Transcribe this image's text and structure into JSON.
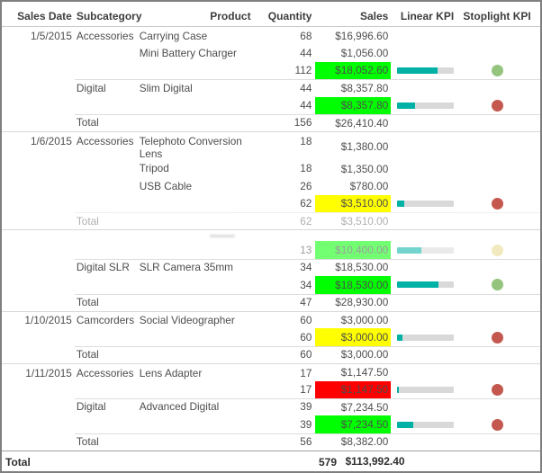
{
  "header": {
    "columns": [
      "Sales Date",
      "Subcategory",
      "Product",
      "Quantity",
      "Sales",
      "Linear KPI",
      "Stoplight KPI"
    ]
  },
  "colors": {
    "kpi_bar_fill": "#00b2a6",
    "kpi_bar_track": "#d9d9d9",
    "green_cell": "#00ff00",
    "yellow_cell": "#ffff00",
    "red_cell": "#ff0000",
    "stoplight_green": "#94c47e",
    "stoplight_red": "#c4584f",
    "stoplight_yellow": "#e8d889"
  },
  "rows": [
    {
      "type": "product",
      "date": "1/5/2015",
      "subcat": "Accessories",
      "product": "Carrying Case",
      "qty": "68",
      "sales": "$16,996.60"
    },
    {
      "type": "product",
      "product": "Mini Battery Charger",
      "qty": "44",
      "sales": "$1,056.00"
    },
    {
      "type": "kpi",
      "qty": "112",
      "sales": "$18,052.60",
      "sales_bg": "green",
      "bar": 0.71,
      "light": "green"
    },
    {
      "type": "product",
      "subcat": "Digital",
      "product": "Slim Digital",
      "qty": "44",
      "sales": "$8,357.80",
      "sep": "indent"
    },
    {
      "type": "kpi",
      "qty": "44",
      "sales": "$8,357.80",
      "sales_bg": "green",
      "bar": 0.31,
      "light": "red"
    },
    {
      "type": "total",
      "subcat": "Total",
      "qty": "156",
      "sales": "$26,410.40",
      "sep": "indent"
    },
    {
      "type": "product",
      "date": "1/6/2015",
      "subcat": "Accessories",
      "product": "Telephoto Conversion Lens",
      "qty": "18",
      "sales": "$1,380.00",
      "sep": "full"
    },
    {
      "type": "product",
      "product": "Tripod",
      "qty": "18",
      "sales": "$1,350.00"
    },
    {
      "type": "product",
      "product": "USB Cable",
      "qty": "26",
      "sales": "$780.00"
    },
    {
      "type": "kpi",
      "qty": "62",
      "sales": "$3,510.00",
      "sales_bg": "yellow",
      "bar": 0.13,
      "light": "red"
    },
    {
      "type": "total",
      "subcat": "Total",
      "qty": "62",
      "sales": "$3,510.00",
      "sep": "indent",
      "ghost": true
    },
    {
      "type": "hint",
      "sep": "full"
    },
    {
      "type": "kpi",
      "qty": "13",
      "sales": "$10,400.00",
      "sales_bg": "green",
      "bar": 0.42,
      "light": "yellow",
      "ghost_kpi": true
    },
    {
      "type": "product",
      "subcat": "Digital SLR",
      "product": "SLR Camera 35mm",
      "qty": "34",
      "sales": "$18,530.00",
      "sep": "indent"
    },
    {
      "type": "kpi",
      "qty": "34",
      "sales": "$18,530.00",
      "sales_bg": "green",
      "bar": 0.72,
      "light": "green"
    },
    {
      "type": "total",
      "subcat": "Total",
      "qty": "47",
      "sales": "$28,930.00",
      "sep": "indent"
    },
    {
      "type": "product",
      "date": "1/10/2015",
      "subcat": "Camcorders",
      "product": "Social Videographer",
      "qty": "60",
      "sales": "$3,000.00",
      "sep": "full"
    },
    {
      "type": "kpi",
      "qty": "60",
      "sales": "$3,000.00",
      "sales_bg": "yellow",
      "bar": 0.09,
      "light": "red"
    },
    {
      "type": "total",
      "subcat": "Total",
      "qty": "60",
      "sales": "$3,000.00",
      "sep": "indent"
    },
    {
      "type": "product",
      "date": "1/11/2015",
      "subcat": "Accessories",
      "product": "Lens Adapter",
      "qty": "17",
      "sales": "$1,147.50",
      "sep": "full"
    },
    {
      "type": "kpi",
      "qty": "17",
      "sales": "$1,147.50",
      "sales_bg": "red",
      "bar": 0.03,
      "light": "red"
    },
    {
      "type": "product",
      "subcat": "Digital",
      "product": "Advanced Digital",
      "qty": "39",
      "sales": "$7,234.50",
      "sep": "indent"
    },
    {
      "type": "kpi",
      "qty": "39",
      "sales": "$7,234.50",
      "sales_bg": "green",
      "bar": 0.28,
      "light": "red"
    },
    {
      "type": "total",
      "subcat": "Total",
      "qty": "56",
      "sales": "$8,382.00",
      "sep": "indent"
    },
    {
      "type": "grand",
      "date": "Total",
      "qty": "579",
      "sales": "$113,992.40",
      "sep": "dark"
    }
  ]
}
